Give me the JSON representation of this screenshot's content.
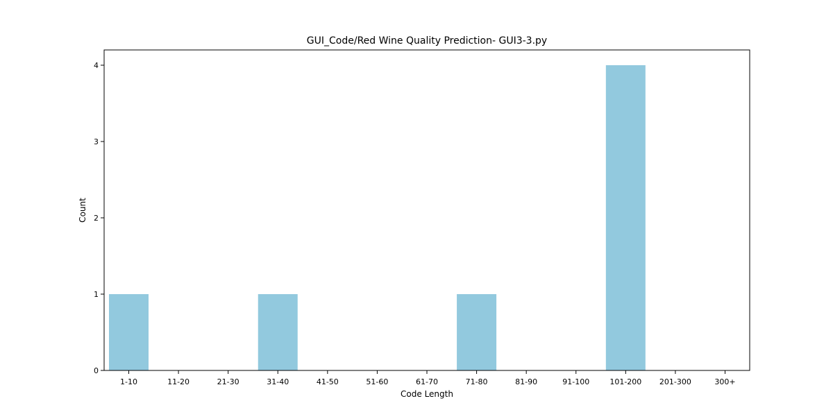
{
  "chart_data": {
    "type": "bar",
    "title": "GUI_Code/Red Wine Quality Prediction- GUI3-3.py",
    "xlabel": "Code Length",
    "ylabel": "Count",
    "categories": [
      "1-10",
      "11-20",
      "21-30",
      "31-40",
      "41-50",
      "51-60",
      "61-70",
      "71-80",
      "81-90",
      "91-100",
      "101-200",
      "201-300",
      "300+"
    ],
    "values": [
      1,
      0,
      0,
      1,
      0,
      0,
      0,
      1,
      0,
      0,
      4,
      0,
      0
    ],
    "ylim": [
      0,
      4.2
    ],
    "yticks": [
      0,
      1,
      2,
      3,
      4
    ],
    "grid": false,
    "bar_color": "#92c9de"
  }
}
